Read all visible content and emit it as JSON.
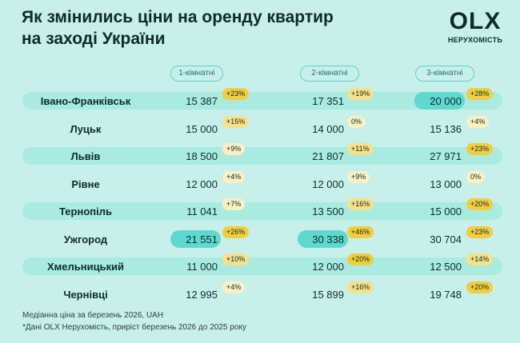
{
  "title_line1": "Як змінились ціни на оренду квартир",
  "title_line2": "на заході України",
  "logo": {
    "mark": "OLX",
    "subtitle": "НЕРУХОМІСТЬ"
  },
  "columns": [
    "1-кімнатні",
    "2-кімнатні",
    "3-кімнатні"
  ],
  "rows": [
    {
      "city": "Івано-Франківськ",
      "v1": "15 387",
      "g1": "+23%",
      "v2": "17 351",
      "g2": "+19%",
      "v3": "20 000",
      "g3": "+28%"
    },
    {
      "city": "Луцьк",
      "v1": "15 000",
      "g1": "+15%",
      "v2": "14 000",
      "g2": "0%",
      "v3": "15 136",
      "g3": "+4%"
    },
    {
      "city": "Львів",
      "v1": "18 500",
      "g1": "+9%",
      "v2": "21 807",
      "g2": "+11%",
      "v3": "27 971",
      "g3": "+23%"
    },
    {
      "city": "Рівне",
      "v1": "12 000",
      "g1": "+4%",
      "v2": "12 000",
      "g2": "+9%",
      "v3": "13 000",
      "g3": "0%"
    },
    {
      "city": "Тернопіль",
      "v1": "11 041",
      "g1": "+7%",
      "v2": "13 500",
      "g2": "+16%",
      "v3": "15 000",
      "g3": "+20%"
    },
    {
      "city": "Ужгород",
      "v1": "21 551",
      "g1": "+26%",
      "v2": "30 338",
      "g2": "+46%",
      "v3": "30 704",
      "g3": "+23%"
    },
    {
      "city": "Хмельницький",
      "v1": "11 000",
      "g1": "+10%",
      "v2": "12 000",
      "g2": "+20%",
      "v3": "12 500",
      "g3": "+14%"
    },
    {
      "city": "Чернівці",
      "v1": "12 995",
      "g1": "+4%",
      "v2": "15 899",
      "g2": "+16%",
      "v3": "19 748",
      "g3": "+20%"
    }
  ],
  "highlights": [
    {
      "row": 0,
      "col": 3
    },
    {
      "row": 5,
      "col": 1
    },
    {
      "row": 5,
      "col": 2
    }
  ],
  "colors": {
    "background": "#c8f0ea",
    "band": "#a9ebe1",
    "highlight": "#5fd9cf"
  },
  "footnote1": "Медіанна ціна за березень 2026, UAH",
  "footnote2": "*Дані OLX Нерухомість, приріст березень 2026 до 2025 року"
}
